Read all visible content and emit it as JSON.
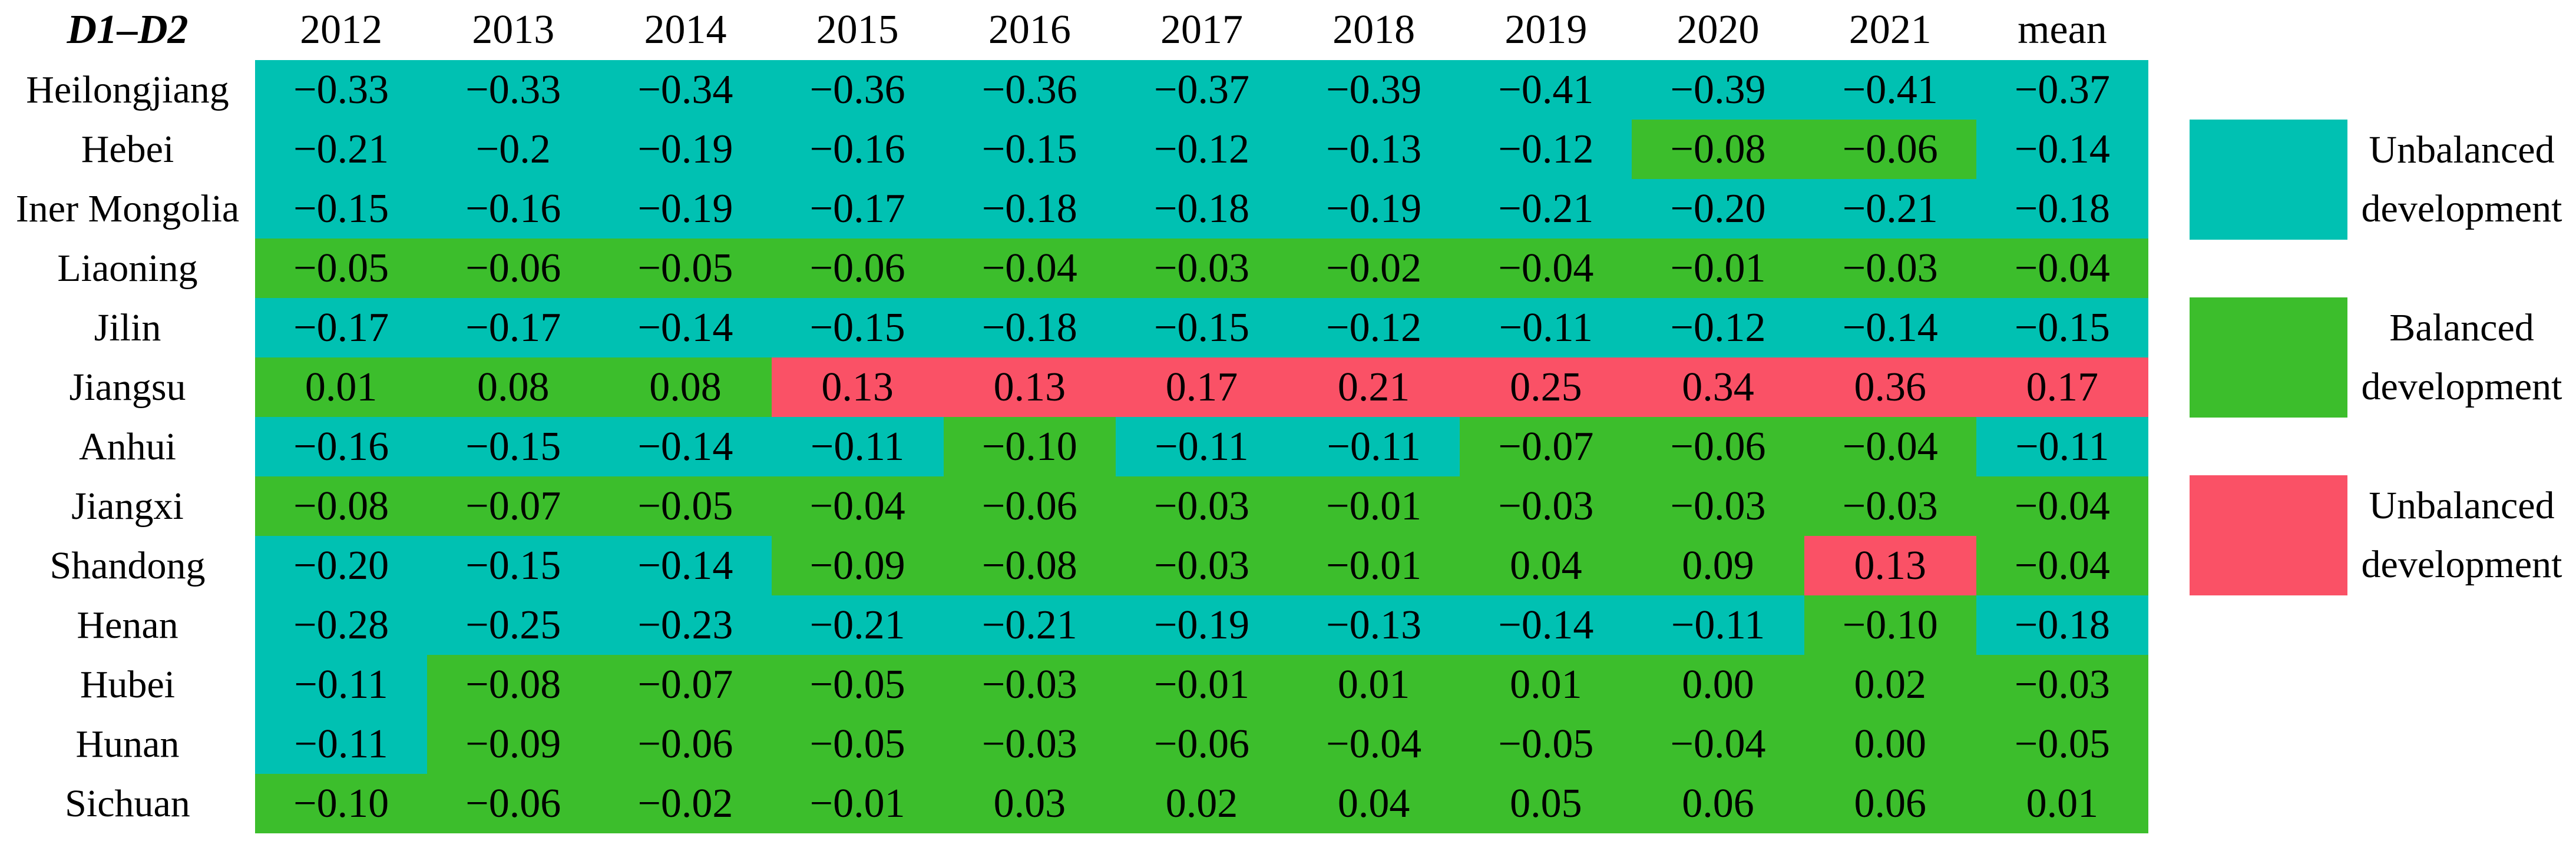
{
  "chart_data": {
    "type": "heatmap",
    "corner_label": "D1–D2",
    "columns": [
      "2012",
      "2013",
      "2014",
      "2015",
      "2016",
      "2017",
      "2018",
      "2019",
      "2020",
      "2021",
      "mean"
    ],
    "rows": [
      {
        "name": "Heilongjiang",
        "values": [
          "−0.33",
          "−0.33",
          "−0.34",
          "−0.36",
          "−0.36",
          "−0.37",
          "−0.39",
          "−0.41",
          "−0.39",
          "−0.41",
          "−0.37"
        ],
        "categories": "ttttttttttt"
      },
      {
        "name": "Hebei",
        "values": [
          "−0.21",
          "−0.2",
          "−0.19",
          "−0.16",
          "−0.15",
          "−0.12",
          "−0.13",
          "−0.12",
          "−0.08",
          "−0.06",
          "−0.14"
        ],
        "categories": "ttttttttggt"
      },
      {
        "name": "Iner Mongolia",
        "values": [
          "−0.15",
          "−0.16",
          "−0.19",
          "−0.17",
          "−0.18",
          "−0.18",
          "−0.19",
          "−0.21",
          "−0.20",
          "−0.21",
          "−0.18"
        ],
        "categories": "ttttttttttt"
      },
      {
        "name": "Liaoning",
        "values": [
          "−0.05",
          "−0.06",
          "−0.05",
          "−0.06",
          "−0.04",
          "−0.03",
          "−0.02",
          "−0.04",
          "−0.01",
          "−0.03",
          "−0.04"
        ],
        "categories": "ggggggggggg"
      },
      {
        "name": "Jilin",
        "values": [
          "−0.17",
          "−0.17",
          "−0.14",
          "−0.15",
          "−0.18",
          "−0.15",
          "−0.12",
          "−0.11",
          "−0.12",
          "−0.14",
          "−0.15"
        ],
        "categories": "ttttttttttt"
      },
      {
        "name": "Jiangsu",
        "values": [
          "0.01",
          "0.08",
          "0.08",
          "0.13",
          "0.13",
          "0.17",
          "0.21",
          "0.25",
          "0.34",
          "0.36",
          "0.17"
        ],
        "categories": "gggrrrrrrrr"
      },
      {
        "name": "Anhui",
        "values": [
          "−0.16",
          "−0.15",
          "−0.14",
          "−0.11",
          "−0.10",
          "−0.11",
          "−0.11",
          "−0.07",
          "−0.06",
          "−0.04",
          "−0.11"
        ],
        "categories": "ttttgttgggt"
      },
      {
        "name": "Jiangxi",
        "values": [
          "−0.08",
          "−0.07",
          "−0.05",
          "−0.04",
          "−0.06",
          "−0.03",
          "−0.01",
          "−0.03",
          "−0.03",
          "−0.03",
          "−0.04"
        ],
        "categories": "ggggggggggg"
      },
      {
        "name": "Shandong",
        "values": [
          "−0.20",
          "−0.15",
          "−0.14",
          "−0.09",
          "−0.08",
          "−0.03",
          "−0.01",
          "0.04",
          "0.09",
          "0.13",
          "−0.04"
        ],
        "categories": "tttggggggrg"
      },
      {
        "name": "Henan",
        "values": [
          "−0.28",
          "−0.25",
          "−0.23",
          "−0.21",
          "−0.21",
          "−0.19",
          "−0.13",
          "−0.14",
          "−0.11",
          "−0.10",
          "−0.18"
        ],
        "categories": "tttttttttgt"
      },
      {
        "name": "Hubei",
        "values": [
          "−0.11",
          "−0.08",
          "−0.07",
          "−0.05",
          "−0.03",
          "−0.01",
          "0.01",
          "0.01",
          "0.00",
          "0.02",
          "−0.03"
        ],
        "categories": "tgggggggggg"
      },
      {
        "name": "Hunan",
        "values": [
          "−0.11",
          "−0.09",
          "−0.06",
          "−0.05",
          "−0.03",
          "−0.06",
          "−0.04",
          "−0.05",
          "−0.04",
          "0.00",
          "−0.05"
        ],
        "categories": "tgggggggggg"
      },
      {
        "name": "Sichuan",
        "values": [
          "−0.10",
          "−0.06",
          "−0.02",
          "−0.01",
          "0.03",
          "0.02",
          "0.04",
          "0.05",
          "0.06",
          "0.06",
          "0.01"
        ],
        "categories": "ggggggggggg"
      }
    ],
    "colors": {
      "t": "#00c1b2",
      "g": "#3cbe2c",
      "r": "#fa5166"
    },
    "legend": {
      "position": "right",
      "entries": [
        {
          "key": "t",
          "line1": "Unbalanced",
          "line2": "development"
        },
        {
          "key": "g",
          "line1": "Balanced",
          "line2": "development"
        },
        {
          "key": "r",
          "line1": "Unbalanced",
          "line2": "development"
        }
      ]
    },
    "grid": "off"
  }
}
